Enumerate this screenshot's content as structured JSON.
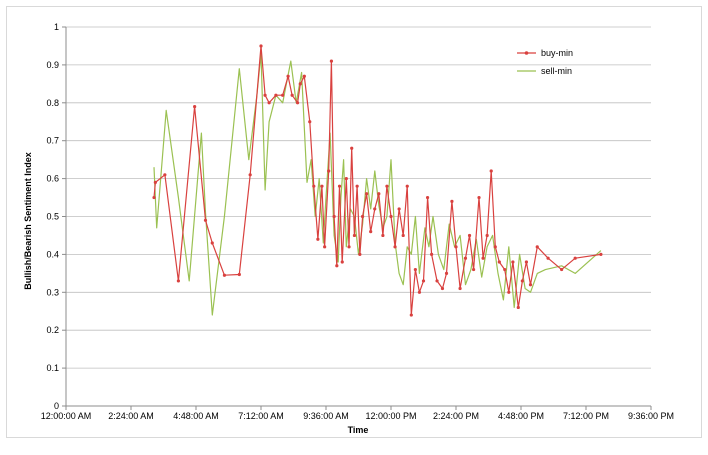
{
  "chart_data": {
    "type": "line",
    "title": "",
    "xlabel": "Time",
    "ylabel": "Bullish/Bearish Sentiment Index",
    "x_unit": "hours since midnight",
    "xlim": [
      0,
      21.6
    ],
    "ylim": [
      0,
      1
    ],
    "x_ticks": [
      0,
      2.4,
      4.8,
      7.2,
      9.6,
      12,
      14.4,
      16.8,
      19.2,
      21.6
    ],
    "x_tick_labels": [
      "12:00:00 AM",
      "2:24:00 AM",
      "4:48:00 AM",
      "7:12:00 AM",
      "9:36:00 AM",
      "12:00:00 PM",
      "2:24:00 PM",
      "4:48:00 PM",
      "7:12:00 PM",
      "9:36:00 PM"
    ],
    "y_ticks": [
      0,
      0.1,
      0.2,
      0.3,
      0.4,
      0.5,
      0.6,
      0.7,
      0.8,
      0.9,
      1
    ],
    "y_tick_labels": [
      "0",
      "0.1",
      "0.2",
      "0.3",
      "0.4",
      "0.5",
      "0.6",
      "0.7",
      "0.8",
      "0.9",
      "1"
    ],
    "grid": true,
    "legend_position": "top-right",
    "series": [
      {
        "name": "buy-min",
        "color": "#d9413f",
        "marker": "circle",
        "x": [
          3.25,
          3.3,
          3.65,
          4.15,
          4.75,
          5.15,
          5.4,
          5.85,
          6.4,
          6.8,
          7.2,
          7.35,
          7.5,
          7.75,
          8.0,
          8.2,
          8.35,
          8.55,
          8.65,
          8.8,
          9.0,
          9.15,
          9.3,
          9.45,
          9.55,
          9.7,
          9.8,
          9.9,
          10.0,
          10.1,
          10.2,
          10.35,
          10.45,
          10.55,
          10.65,
          10.75,
          10.85,
          10.95,
          11.1,
          11.25,
          11.4,
          11.55,
          11.7,
          11.85,
          12.0,
          12.15,
          12.3,
          12.45,
          12.6,
          12.75,
          12.9,
          13.05,
          13.2,
          13.35,
          13.5,
          13.7,
          13.9,
          14.05,
          14.25,
          14.4,
          14.55,
          14.75,
          14.9,
          15.05,
          15.25,
          15.4,
          15.55,
          15.7,
          15.85,
          16.0,
          16.2,
          16.35,
          16.5,
          16.7,
          16.85,
          17.0,
          17.15,
          17.4,
          17.8,
          18.3,
          18.8,
          19.75
        ],
        "y": [
          0.55,
          0.59,
          0.61,
          0.33,
          0.79,
          0.49,
          0.43,
          0.345,
          0.347,
          0.61,
          0.95,
          0.82,
          0.8,
          0.82,
          0.82,
          0.87,
          0.82,
          0.8,
          0.85,
          0.87,
          0.75,
          0.58,
          0.44,
          0.58,
          0.42,
          0.62,
          0.91,
          0.5,
          0.37,
          0.58,
          0.38,
          0.6,
          0.42,
          0.68,
          0.45,
          0.58,
          0.4,
          0.5,
          0.56,
          0.46,
          0.52,
          0.56,
          0.45,
          0.58,
          0.5,
          0.42,
          0.52,
          0.45,
          0.58,
          0.24,
          0.36,
          0.3,
          0.33,
          0.55,
          0.4,
          0.33,
          0.31,
          0.35,
          0.54,
          0.42,
          0.31,
          0.39,
          0.45,
          0.36,
          0.55,
          0.39,
          0.45,
          0.62,
          0.42,
          0.38,
          0.36,
          0.3,
          0.38,
          0.26,
          0.33,
          0.38,
          0.32,
          0.42,
          0.39,
          0.36,
          0.39,
          0.4
        ]
      },
      {
        "name": "sell-min",
        "color": "#9bc152",
        "marker": "none",
        "x": [
          3.25,
          3.35,
          3.7,
          4.15,
          4.55,
          5.0,
          5.15,
          5.4,
          5.85,
          6.4,
          6.75,
          7.05,
          7.2,
          7.35,
          7.5,
          7.75,
          8.0,
          8.3,
          8.5,
          8.7,
          8.9,
          9.05,
          9.2,
          9.35,
          9.5,
          9.6,
          9.75,
          9.9,
          10.05,
          10.15,
          10.25,
          10.35,
          10.5,
          10.65,
          10.8,
          10.95,
          11.1,
          11.25,
          11.4,
          11.55,
          11.7,
          11.85,
          12.0,
          12.15,
          12.3,
          12.45,
          12.6,
          12.75,
          12.9,
          13.05,
          13.25,
          13.4,
          13.55,
          13.75,
          13.95,
          14.15,
          14.35,
          14.55,
          14.75,
          14.95,
          15.15,
          15.35,
          15.55,
          15.75,
          15.95,
          16.15,
          16.35,
          16.55,
          16.75,
          16.95,
          17.15,
          17.4,
          17.7,
          18.3,
          18.8,
          19.75
        ],
        "y": [
          0.63,
          0.47,
          0.78,
          0.55,
          0.33,
          0.72,
          0.51,
          0.24,
          0.5,
          0.89,
          0.65,
          0.82,
          0.93,
          0.57,
          0.75,
          0.82,
          0.8,
          0.91,
          0.8,
          0.88,
          0.59,
          0.65,
          0.5,
          0.6,
          0.43,
          0.55,
          0.72,
          0.45,
          0.38,
          0.55,
          0.65,
          0.42,
          0.52,
          0.5,
          0.4,
          0.48,
          0.6,
          0.52,
          0.62,
          0.53,
          0.47,
          0.5,
          0.65,
          0.43,
          0.35,
          0.32,
          0.42,
          0.4,
          0.5,
          0.35,
          0.47,
          0.42,
          0.5,
          0.4,
          0.36,
          0.48,
          0.42,
          0.45,
          0.32,
          0.36,
          0.44,
          0.34,
          0.42,
          0.45,
          0.35,
          0.28,
          0.42,
          0.26,
          0.4,
          0.31,
          0.3,
          0.35,
          0.36,
          0.37,
          0.35,
          0.41
        ]
      }
    ]
  }
}
